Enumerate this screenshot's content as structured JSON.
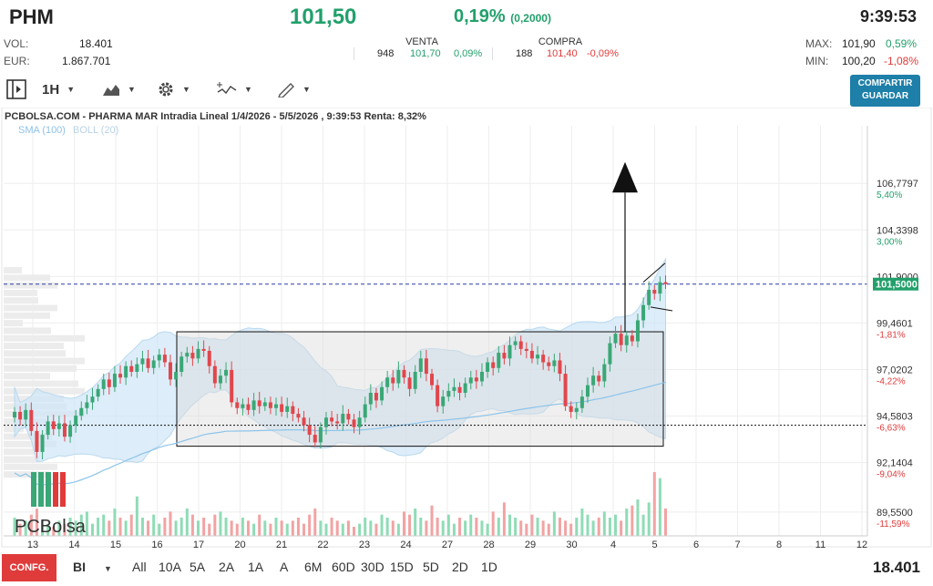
{
  "header": {
    "ticker": "PHM",
    "price": "101,50",
    "change_pct": "0,19%",
    "change_abs": "(0,2000)",
    "time": "9:39:53"
  },
  "stats": {
    "vol_label": "VOL:",
    "vol_value": "18.401",
    "eur_label": "EUR:",
    "eur_value": "1.867.701",
    "max_label": "MAX:",
    "max_value": "101,90",
    "max_pct": "0,59%",
    "min_label": "MIN:",
    "min_value": "100,20",
    "min_pct": "-1,08%"
  },
  "venta": {
    "label": "VENTA",
    "qty": "948",
    "price": "101,70",
    "pct": "0,09%"
  },
  "compra": {
    "label": "COMPRA",
    "qty": "188",
    "price": "101,40",
    "pct": "-0,09%"
  },
  "toolbar": {
    "interval": "1H",
    "share_label": "COMPARTIR",
    "save_label": "GUARDAR",
    "icons": [
      "sidebar-toggle-icon",
      "area-chart-icon",
      "gear-icon",
      "indicators-icon",
      "pencil-icon"
    ]
  },
  "bottom": {
    "config_label": "CONFG.",
    "mode": "BI",
    "ranges": [
      "All",
      "10A",
      "5A",
      "2A",
      "1A",
      "A",
      "6M",
      "60D",
      "30D",
      "15D",
      "5D",
      "2D",
      "1D"
    ],
    "volume_total": "18.401"
  },
  "chart_data": {
    "type": "candlestick",
    "title": "PCBOLSA.COM - PHARMA MAR Intradia Lineal 1/4/2026 - 5/5/2026 , 9:39:53 Renta: 8,32%",
    "legend": [
      "SMA (100)",
      "BOLL (20)"
    ],
    "watermark": "PCBolsa",
    "x_labels": [
      "13",
      "14",
      "15",
      "16",
      "17",
      "20",
      "21",
      "22",
      "23",
      "24",
      "27",
      "28",
      "29",
      "30",
      "4",
      "5",
      "6",
      "7",
      "8",
      "11",
      "12"
    ],
    "y_ticks": [
      {
        "value": 106.7797,
        "label": "106,7797",
        "pct": "5,40%",
        "pct_color": "#22a06b"
      },
      {
        "value": 104.3398,
        "label": "104,3398",
        "pct": "3,00%",
        "pct_color": "#22a06b"
      },
      {
        "value": 101.9,
        "label": "101,9000",
        "pct": "",
        "pct_color": "#22a06b"
      },
      {
        "value": 99.4601,
        "label": "99,4601",
        "pct": "-1,81%",
        "pct_color": "#e03b3b"
      },
      {
        "value": 97.0202,
        "label": "97,0202",
        "pct": "-4,22%",
        "pct_color": "#e03b3b"
      },
      {
        "value": 94.5803,
        "label": "94,5803",
        "pct": "-6,63%",
        "pct_color": "#e03b3b"
      },
      {
        "value": 92.1404,
        "label": "92,1404",
        "pct": "-9,04%",
        "pct_color": "#e03b3b"
      },
      {
        "value": 89.55,
        "label": "89,5500",
        "pct": "-11,59%",
        "pct_color": "#e03b3b"
      }
    ],
    "current_price": 101.5,
    "current_price_label": "101,5000",
    "ylim": [
      88.3,
      109.8
    ],
    "support_level": 94.1,
    "range_box": {
      "top": 99.0,
      "bottom": 93.0
    },
    "up_color": "#3aa776",
    "down_color": "#e0474c",
    "close": [
      94.8,
      94.4,
      94.9,
      93.8,
      92.7,
      93.6,
      94.3,
      93.9,
      94.2,
      93.5,
      94.1,
      94.6,
      95.0,
      95.3,
      95.6,
      96.0,
      96.5,
      96.1,
      96.8,
      96.6,
      97.2,
      96.9,
      97.3,
      97.6,
      97.1,
      97.5,
      97.8,
      97.4,
      96.5,
      96.9,
      97.7,
      97.9,
      97.6,
      98.1,
      98.0,
      97.2,
      96.3,
      96.7,
      97.0,
      95.3,
      95.0,
      95.2,
      94.9,
      95.4,
      95.1,
      95.3,
      95.0,
      95.2,
      94.8,
      95.1,
      94.7,
      94.5,
      94.1,
      93.6,
      93.2,
      94.0,
      94.5,
      94.3,
      94.2,
      94.7,
      94.4,
      94.0,
      94.5,
      95.2,
      95.8,
      95.4,
      96.1,
      96.6,
      96.3,
      97.0,
      96.6,
      96.0,
      96.9,
      97.6,
      96.8,
      96.2,
      95.1,
      95.6,
      95.9,
      96.1,
      95.8,
      96.3,
      96.6,
      96.4,
      96.9,
      97.4,
      97.1,
      97.9,
      97.6,
      98.3,
      98.5,
      98.1,
      98.0,
      97.6,
      97.8,
      97.4,
      97.2,
      97.5,
      96.8,
      95.1,
      94.8,
      95.0,
      95.6,
      96.2,
      96.7,
      96.4,
      97.3,
      98.4,
      98.9,
      98.3,
      98.8,
      98.5,
      99.6,
      100.4,
      101.2,
      101.0,
      101.6,
      101.5
    ],
    "volume_scale": [
      0,
      0,
      0,
      0,
      0,
      0,
      0,
      0,
      0,
      0,
      0,
      0,
      0,
      0,
      0,
      0,
      0,
      0,
      0,
      0,
      0,
      0,
      0,
      0,
      0,
      0,
      0,
      0,
      0,
      0,
      0,
      0,
      0,
      0,
      0,
      0,
      0,
      0,
      0,
      0,
      0,
      0,
      0,
      0,
      0,
      0,
      0,
      0,
      0,
      0,
      0,
      0,
      0,
      0,
      0,
      0,
      0,
      0,
      0,
      0,
      0,
      0,
      0,
      0,
      0,
      0,
      0,
      0,
      0,
      0,
      0,
      0,
      0,
      0,
      0,
      0,
      0,
      0,
      0,
      0,
      0,
      0,
      0,
      0,
      0,
      0,
      0,
      0,
      0,
      0,
      0,
      0,
      0,
      0,
      0,
      0,
      0,
      0,
      0,
      0,
      0,
      0,
      0,
      0,
      0,
      0,
      0,
      0,
      0,
      0,
      0,
      0,
      0,
      0,
      0,
      0,
      0,
      0
    ],
    "volume": [
      6,
      4,
      5,
      7,
      9,
      5,
      4,
      3,
      5,
      4,
      6,
      5,
      7,
      8,
      4,
      6,
      7,
      5,
      9,
      6,
      5,
      7,
      13,
      6,
      5,
      7,
      4,
      6,
      8,
      5,
      6,
      9,
      7,
      5,
      6,
      4,
      7,
      8,
      6,
      5,
      4,
      6,
      5,
      4,
      7,
      5,
      4,
      6,
      5,
      4,
      5,
      6,
      4,
      7,
      9,
      5,
      4,
      6,
      5,
      4,
      5,
      3,
      4,
      6,
      5,
      4,
      7,
      6,
      5,
      4,
      8,
      7,
      9,
      6,
      5,
      10,
      6,
      5,
      7,
      4,
      6,
      5,
      7,
      6,
      5,
      4,
      8,
      6,
      11,
      7,
      6,
      5,
      4,
      7,
      6,
      5,
      4,
      8,
      6,
      5,
      4,
      6,
      9,
      7,
      5,
      6,
      8,
      6,
      7,
      5,
      9,
      10,
      12,
      7,
      11,
      21,
      19,
      9
    ]
  }
}
